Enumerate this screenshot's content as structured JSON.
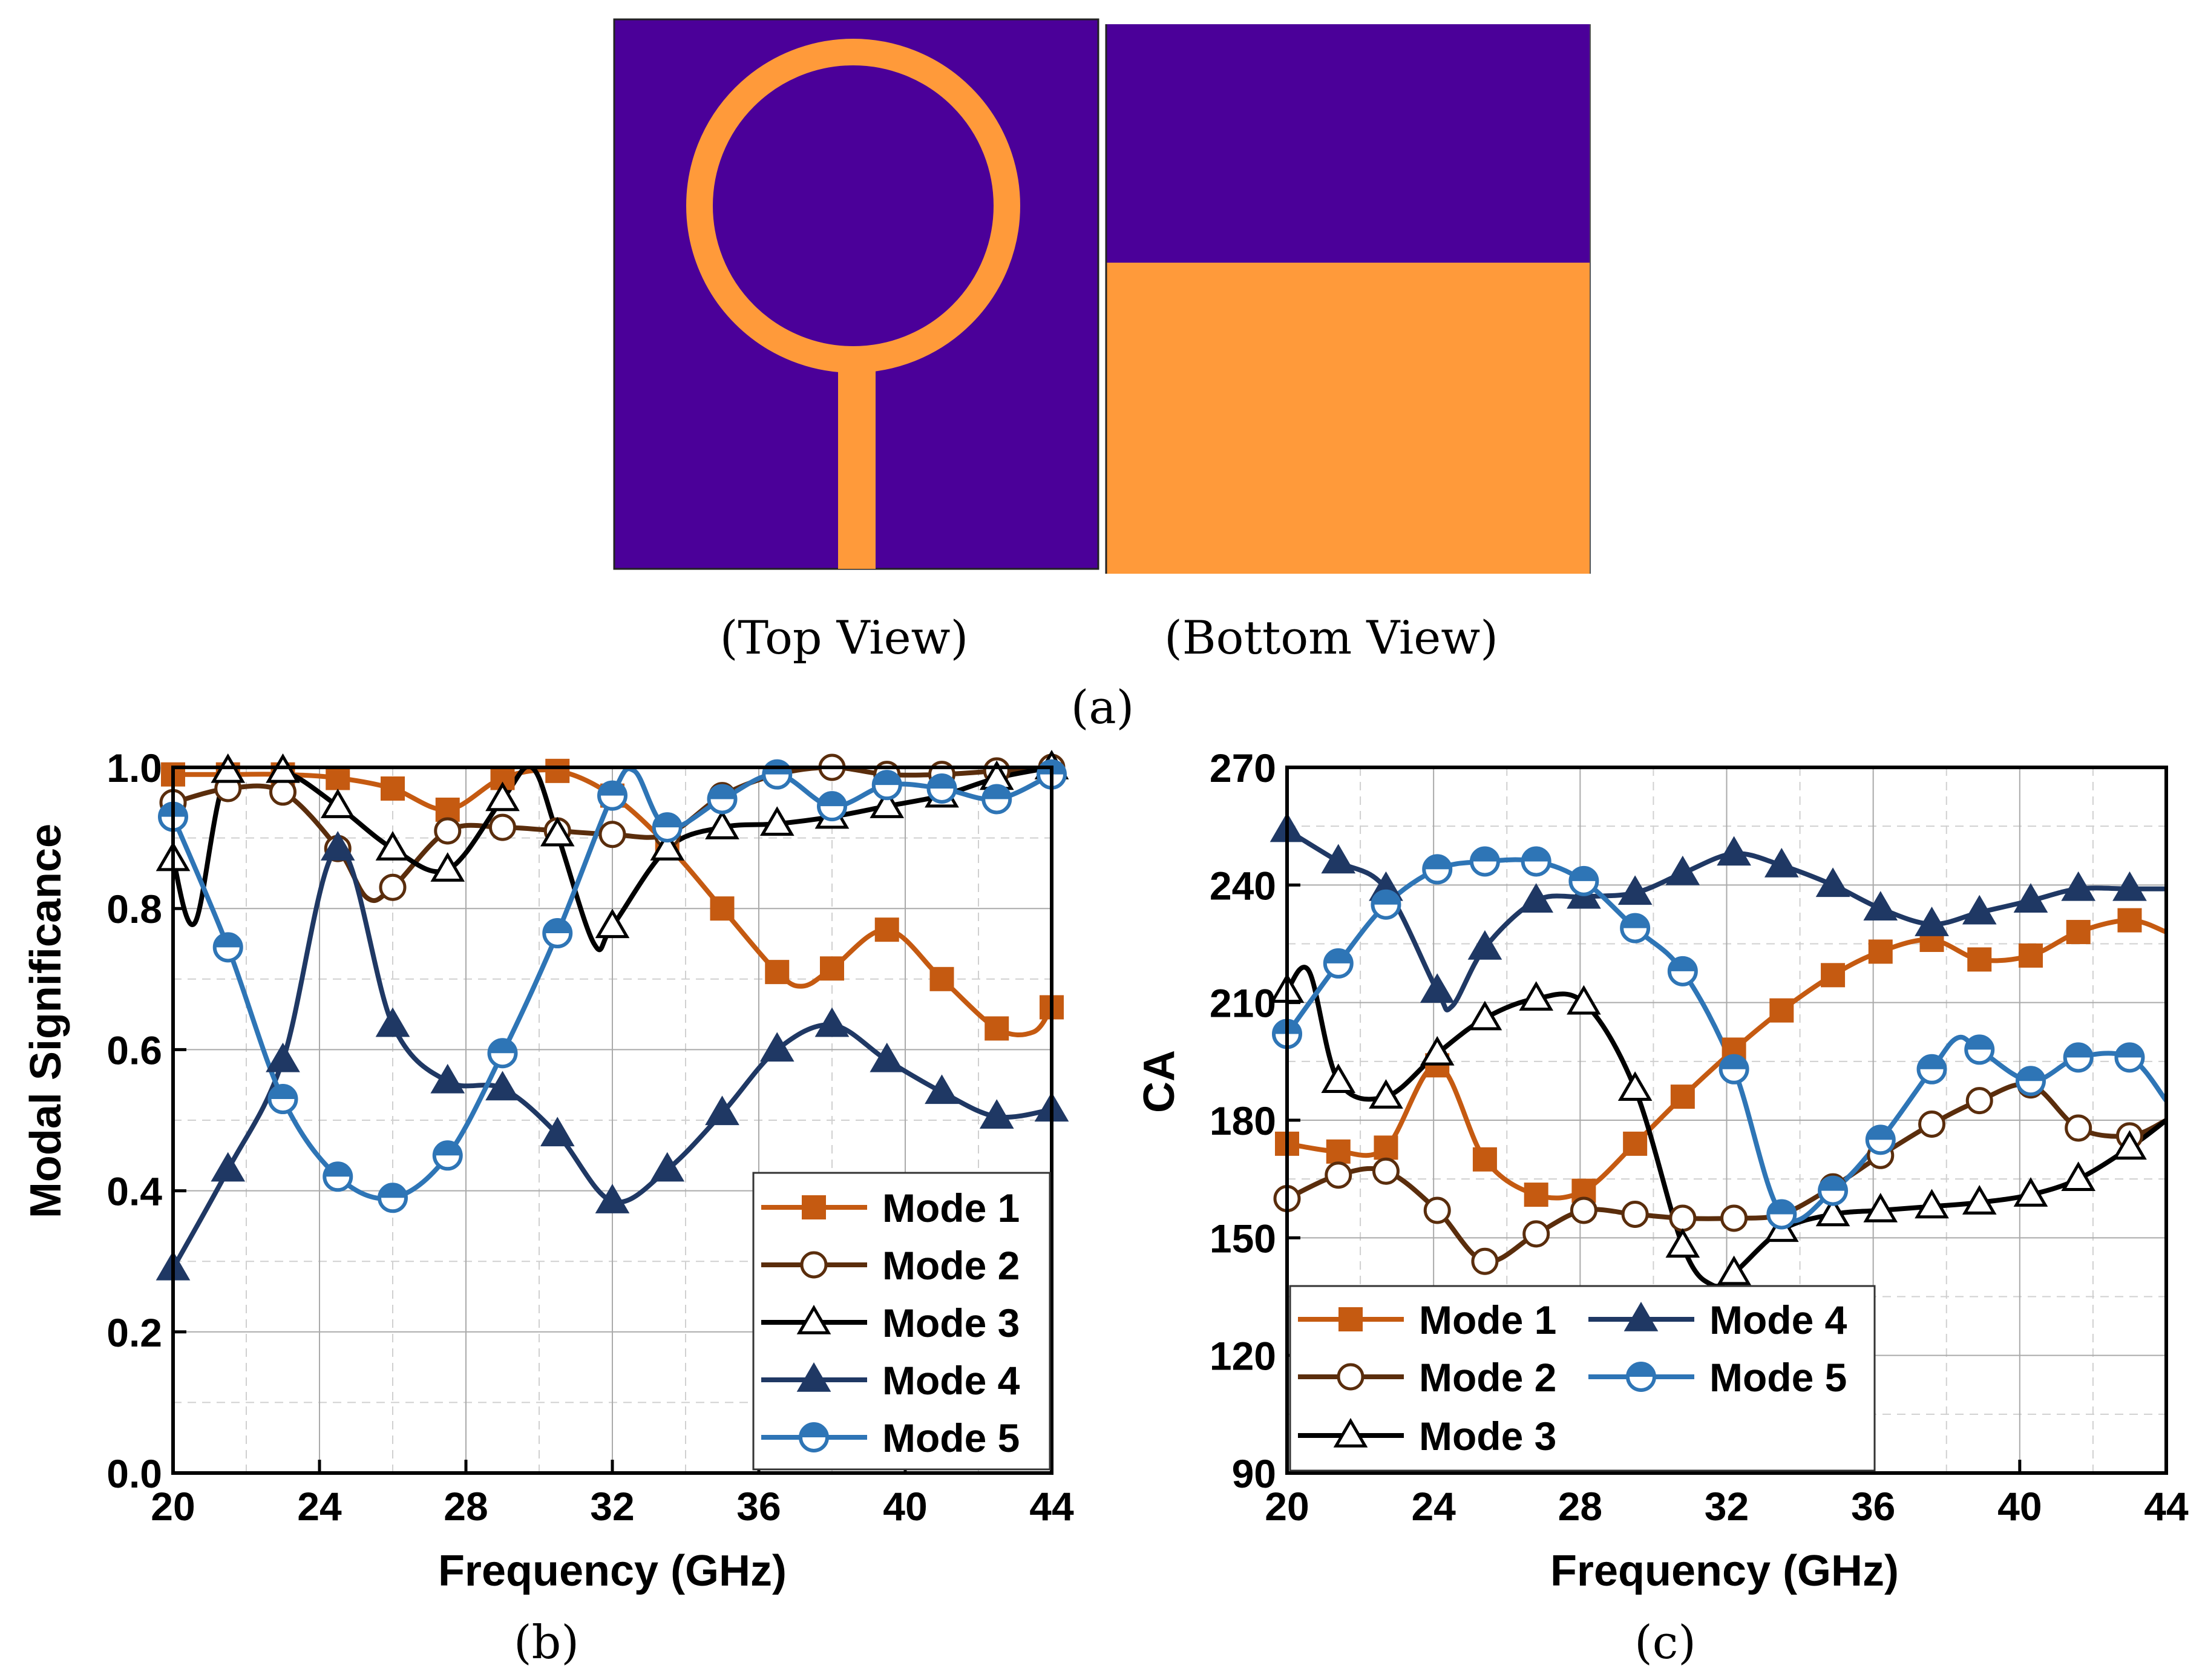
{
  "figure_a": {
    "top_view_caption": "(Top View)",
    "bottom_view_caption": "(Bottom View)",
    "panel_label": "(a)",
    "colors": {
      "substrate": "#4b0099",
      "metal": "#ff9a3a"
    }
  },
  "chart_data": [
    {
      "type": "line",
      "panel_label": "(b)",
      "xlabel": "Frequency (GHz)",
      "ylabel": "Modal Significance",
      "xlim": [
        20,
        44
      ],
      "ylim": [
        0.0,
        1.0
      ],
      "xticks": [
        20,
        24,
        28,
        32,
        36,
        40,
        44
      ],
      "yticks": [
        0.0,
        0.2,
        0.4,
        0.6,
        0.8,
        1.0
      ],
      "ytick_labels": [
        "0.0",
        "0.2",
        "0.4",
        "0.6",
        "0.8",
        "1.0"
      ],
      "grid": true,
      "legend_position": "bottom-right",
      "series": [
        {
          "name": "Mode 1",
          "color": "#c55a11",
          "marker": "square",
          "filled": true,
          "x": [
            20,
            21.5,
            23,
            24.5,
            26,
            27.5,
            29,
            30.5,
            32,
            33.5,
            35,
            36.5,
            37.2,
            38,
            39.5,
            41,
            42.5,
            43.5,
            44
          ],
          "y": [
            0.99,
            0.99,
            0.99,
            0.985,
            0.97,
            0.94,
            0.985,
            0.995,
            0.96,
            0.89,
            0.8,
            0.71,
            0.69,
            0.715,
            0.77,
            0.7,
            0.63,
            0.625,
            0.66
          ],
          "mx": [
            20,
            21.5,
            23,
            24.5,
            26,
            27.5,
            29,
            30.5,
            32,
            33.5,
            35,
            36.5,
            38,
            39.5,
            41,
            42.5,
            44
          ],
          "my": [
            0.99,
            0.99,
            0.99,
            0.985,
            0.97,
            0.94,
            0.985,
            0.995,
            0.96,
            0.89,
            0.8,
            0.71,
            0.715,
            0.77,
            0.7,
            0.63,
            0.66
          ]
        },
        {
          "name": "Mode 2",
          "color": "#5a2d0c",
          "marker": "circle",
          "filled": false,
          "x": [
            20,
            21.5,
            23,
            24.5,
            25.3,
            26,
            27.5,
            29,
            30.5,
            32,
            33.5,
            35,
            36.5,
            38,
            39.5,
            41,
            42.5,
            44
          ],
          "y": [
            0.95,
            0.97,
            0.965,
            0.885,
            0.815,
            0.83,
            0.91,
            0.915,
            0.91,
            0.905,
            0.905,
            0.96,
            0.99,
            1.0,
            0.99,
            0.99,
            0.995,
            1.0
          ],
          "mx": [
            20,
            21.5,
            23,
            24.5,
            26,
            27.5,
            29,
            30.5,
            32,
            33.5,
            35,
            36.5,
            38,
            39.5,
            41,
            42.5,
            44
          ],
          "my": [
            0.95,
            0.97,
            0.965,
            0.885,
            0.83,
            0.91,
            0.915,
            0.91,
            0.905,
            0.905,
            0.96,
            0.99,
            1.0,
            0.99,
            0.99,
            0.995,
            1.0
          ]
        },
        {
          "name": "Mode 3",
          "color": "#000000",
          "marker": "triangle",
          "filled": false,
          "x": [
            20,
            20.6,
            21.5,
            23,
            24.5,
            26,
            27.5,
            29,
            29.8,
            30.5,
            31.5,
            32,
            33.5,
            35,
            36.5,
            38,
            39.5,
            41,
            42.5,
            44
          ],
          "y": [
            0.87,
            0.78,
            0.995,
            0.995,
            0.945,
            0.885,
            0.855,
            0.955,
            1.0,
            0.905,
            0.75,
            0.775,
            0.885,
            0.915,
            0.92,
            0.93,
            0.945,
            0.96,
            0.985,
            1.0
          ],
          "mx": [
            20,
            21.5,
            23,
            24.5,
            26,
            27.5,
            29,
            30.5,
            32,
            33.5,
            35,
            36.5,
            38,
            39.5,
            41,
            42.5,
            44
          ],
          "my": [
            0.87,
            0.995,
            0.995,
            0.945,
            0.885,
            0.855,
            0.955,
            0.905,
            0.775,
            0.885,
            0.915,
            0.92,
            0.93,
            0.945,
            0.96,
            0.985,
            1.0
          ]
        },
        {
          "name": "Mode 4",
          "color": "#1f3864",
          "marker": "triangle",
          "filled": true,
          "x": [
            20,
            21.5,
            23,
            24.5,
            26,
            27.5,
            29,
            30.5,
            32,
            33.5,
            35,
            36.5,
            38,
            39.5,
            41,
            42.5,
            44
          ],
          "y": [
            0.29,
            0.43,
            0.585,
            0.885,
            0.635,
            0.555,
            0.545,
            0.48,
            0.385,
            0.43,
            0.51,
            0.6,
            0.635,
            0.585,
            0.54,
            0.505,
            0.515
          ],
          "mx": [
            20,
            21.5,
            23,
            24.5,
            26,
            27.5,
            29,
            30.5,
            32,
            33.5,
            35,
            36.5,
            38,
            39.5,
            41,
            42.5,
            44
          ],
          "my": [
            0.29,
            0.43,
            0.585,
            0.885,
            0.635,
            0.555,
            0.545,
            0.48,
            0.385,
            0.43,
            0.51,
            0.6,
            0.635,
            0.585,
            0.54,
            0.505,
            0.515
          ]
        },
        {
          "name": "Mode 5",
          "color": "#2e75b6",
          "marker": "circle",
          "filled": true,
          "x": [
            20,
            21.5,
            23,
            24.5,
            26,
            27.5,
            29,
            30.5,
            32,
            32.6,
            33.5,
            35,
            36.5,
            38,
            39.5,
            41,
            42.5,
            44
          ],
          "y": [
            0.93,
            0.745,
            0.53,
            0.42,
            0.39,
            0.45,
            0.595,
            0.765,
            0.96,
            0.995,
            0.915,
            0.955,
            0.99,
            0.945,
            0.975,
            0.97,
            0.955,
            0.99
          ],
          "mx": [
            20,
            21.5,
            23,
            24.5,
            26,
            27.5,
            29,
            30.5,
            32,
            33.5,
            35,
            36.5,
            38,
            39.5,
            41,
            42.5,
            44
          ],
          "my": [
            0.93,
            0.745,
            0.53,
            0.42,
            0.39,
            0.45,
            0.595,
            0.765,
            0.96,
            0.915,
            0.955,
            0.99,
            0.945,
            0.975,
            0.97,
            0.955,
            0.99
          ]
        }
      ]
    },
    {
      "type": "line",
      "panel_label": "(c)",
      "xlabel": "Frequency (GHz)",
      "ylabel": "CA",
      "xlim": [
        20,
        44
      ],
      "ylim": [
        90,
        270
      ],
      "xticks": [
        20,
        24,
        28,
        32,
        36,
        40,
        44
      ],
      "yticks": [
        90,
        120,
        150,
        180,
        210,
        240,
        270
      ],
      "ytick_labels": [
        "90",
        "120",
        "150",
        "180",
        "210",
        "240",
        "270"
      ],
      "grid": true,
      "legend_position": "bottom-left",
      "series": [
        {
          "name": "Mode 1",
          "color": "#c55a11",
          "marker": "square",
          "filled": true,
          "x": [
            20,
            21.4,
            22.7,
            24.1,
            25.4,
            26.8,
            28.1,
            29.5,
            30.8,
            32.2,
            33.5,
            34.9,
            36.2,
            37.6,
            38.9,
            40.3,
            41.6,
            43,
            44
          ],
          "y": [
            174,
            172,
            173,
            194,
            170,
            161,
            162,
            174,
            186,
            198,
            208,
            217,
            223,
            226,
            221,
            222,
            228,
            231,
            228
          ],
          "mx": [
            20,
            21.4,
            22.7,
            24.1,
            25.4,
            26.8,
            28.1,
            29.5,
            30.8,
            32.2,
            33.5,
            34.9,
            36.2,
            37.6,
            38.9,
            40.3,
            41.6,
            43
          ],
          "my": [
            174,
            172,
            173,
            194,
            170,
            161,
            162,
            174,
            186,
            198,
            208,
            217,
            223,
            226,
            221,
            222,
            228,
            231
          ]
        },
        {
          "name": "Mode 2",
          "color": "#5a2d0c",
          "marker": "circle",
          "filled": false,
          "x": [
            20,
            21.4,
            22.7,
            24.1,
            25.4,
            26.8,
            28.1,
            29.5,
            30.8,
            32.2,
            33.5,
            34.9,
            36.2,
            37.6,
            38.9,
            40.3,
            41.6,
            43,
            44
          ],
          "y": [
            160,
            166,
            167,
            157,
            144,
            151,
            157,
            156,
            155,
            155,
            156,
            163,
            171,
            179,
            185,
            189,
            178,
            176,
            180
          ],
          "mx": [
            20,
            21.4,
            22.7,
            24.1,
            25.4,
            26.8,
            28.1,
            29.5,
            30.8,
            32.2,
            33.5,
            34.9,
            36.2,
            37.6,
            38.9,
            40.3,
            41.6,
            43
          ],
          "my": [
            160,
            166,
            167,
            157,
            144,
            151,
            157,
            156,
            155,
            155,
            156,
            163,
            171,
            179,
            185,
            189,
            178,
            176
          ]
        },
        {
          "name": "Mode 3",
          "color": "#000000",
          "marker": "triangle",
          "filled": false,
          "x": [
            20,
            20.6,
            21.4,
            22.7,
            24.1,
            25.4,
            26.8,
            28.1,
            29.5,
            30.8,
            31.6,
            32.2,
            33.5,
            34.9,
            36.2,
            37.6,
            38.9,
            40.3,
            41.6,
            43,
            44
          ],
          "y": [
            213,
            218,
            190,
            186,
            197,
            206,
            211,
            210,
            188,
            148,
            138,
            141,
            152,
            156,
            157,
            158,
            159,
            161,
            165,
            173,
            180
          ],
          "mx": [
            20,
            21.4,
            22.7,
            24.1,
            25.4,
            26.8,
            28.1,
            29.5,
            30.8,
            32.2,
            33.5,
            34.9,
            36.2,
            37.6,
            38.9,
            40.3,
            41.6,
            43
          ],
          "my": [
            213,
            190,
            186,
            197,
            206,
            211,
            210,
            188,
            148,
            141,
            152,
            156,
            157,
            158,
            159,
            161,
            165,
            173
          ]
        },
        {
          "name": "Mode 4",
          "color": "#1f3864",
          "marker": "triangle",
          "filled": true,
          "x": [
            20,
            21.4,
            22.7,
            24.1,
            24.5,
            25.4,
            26.8,
            28.1,
            29.5,
            30.8,
            32.2,
            33.5,
            34.9,
            36.2,
            37.6,
            38.9,
            40.3,
            41.6,
            43,
            44
          ],
          "y": [
            254,
            246,
            239,
            213,
            209,
            224,
            236,
            237,
            238,
            243,
            248,
            245,
            240,
            234,
            230,
            233,
            236,
            239,
            239,
            239
          ],
          "mx": [
            20,
            21.4,
            22.7,
            24.1,
            25.4,
            26.8,
            28.1,
            29.5,
            30.8,
            32.2,
            33.5,
            34.9,
            36.2,
            37.6,
            38.9,
            40.3,
            41.6,
            43
          ],
          "my": [
            254,
            246,
            239,
            213,
            224,
            236,
            237,
            238,
            243,
            248,
            245,
            240,
            234,
            230,
            233,
            236,
            239,
            239
          ]
        },
        {
          "name": "Mode 5",
          "color": "#2e75b6",
          "marker": "circle",
          "filled": true,
          "x": [
            20,
            21.4,
            22.7,
            24.1,
            25.4,
            26.8,
            28.1,
            29.5,
            30.8,
            32.2,
            33.5,
            34.9,
            36.2,
            37.6,
            38.3,
            38.9,
            40.3,
            41.6,
            43,
            44
          ],
          "y": [
            202,
            220,
            235,
            244,
            246,
            246,
            241,
            229,
            218,
            193,
            156,
            162,
            175,
            193,
            201,
            198,
            190,
            196,
            196,
            185
          ],
          "mx": [
            20,
            21.4,
            22.7,
            24.1,
            25.4,
            26.8,
            28.1,
            29.5,
            30.8,
            32.2,
            33.5,
            34.9,
            36.2,
            37.6,
            38.9,
            40.3,
            41.6,
            43
          ],
          "my": [
            202,
            220,
            235,
            244,
            246,
            246,
            241,
            229,
            218,
            193,
            156,
            162,
            175,
            193,
            198,
            190,
            196,
            196
          ]
        }
      ]
    }
  ]
}
